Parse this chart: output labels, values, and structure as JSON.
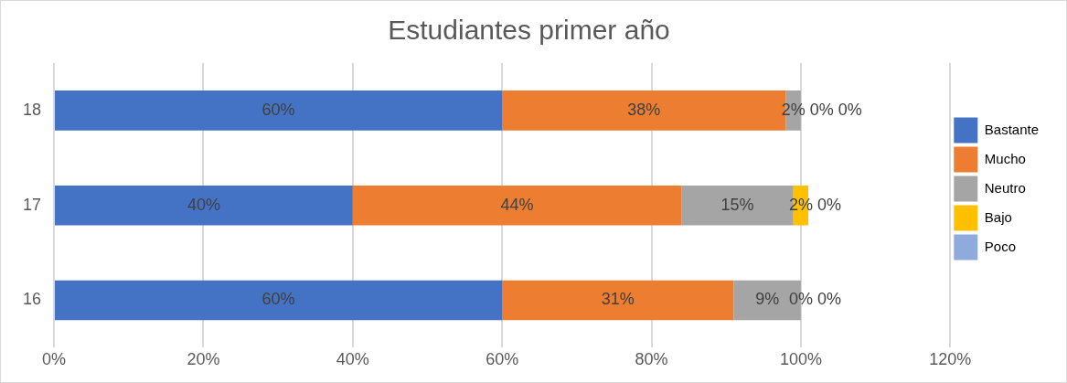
{
  "chart_data": {
    "type": "bar",
    "orientation": "horizontal",
    "stacked": true,
    "title": "Estudiantes primer año",
    "categories": [
      "18",
      "17",
      "16"
    ],
    "series": [
      {
        "name": "Bastante",
        "color": "#4472c4",
        "values": [
          60,
          40,
          60
        ],
        "value_labels": [
          "60%",
          "40%",
          "60%"
        ]
      },
      {
        "name": "Mucho",
        "color": "#ed7d31",
        "values": [
          38,
          44,
          31
        ],
        "value_labels": [
          "38%",
          "44%",
          "31%"
        ]
      },
      {
        "name": "Neutro",
        "color": "#a5a5a5",
        "values": [
          2,
          15,
          9
        ],
        "value_labels": [
          "2%",
          "15%",
          "9%"
        ]
      },
      {
        "name": "Bajo",
        "color": "#ffc000",
        "values": [
          0,
          2,
          0
        ],
        "value_labels": [
          "0%",
          "2%",
          "0%"
        ]
      },
      {
        "name": "Poco",
        "color": "#8faadc",
        "values": [
          0,
          0,
          0
        ],
        "value_labels": [
          "0%",
          "0%",
          "0%"
        ]
      }
    ],
    "xlim": [
      0,
      120
    ],
    "xticks": [
      {
        "value": 0,
        "label": "0%"
      },
      {
        "value": 20,
        "label": "20%"
      },
      {
        "value": 40,
        "label": "40%"
      },
      {
        "value": 60,
        "label": "60%"
      },
      {
        "value": 80,
        "label": "80%"
      },
      {
        "value": 100,
        "label": "100%"
      },
      {
        "value": 120,
        "label": "120%"
      }
    ],
    "grid": "x",
    "legend": "right"
  }
}
